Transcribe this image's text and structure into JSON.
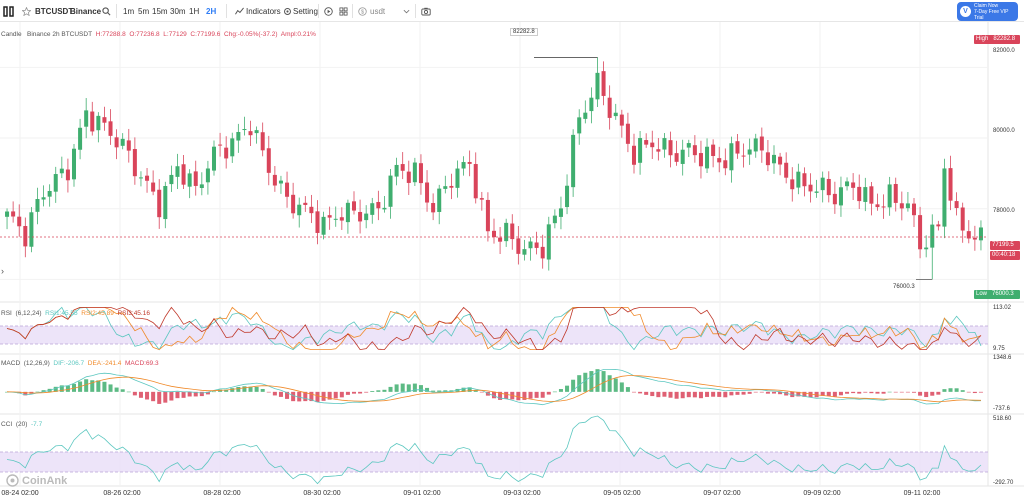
{
  "toolbar": {
    "symbol": "BTCUSDT",
    "exchange": "Binance",
    "intervals": [
      "1m",
      "5m",
      "15m",
      "30m",
      "1H",
      "2H"
    ],
    "active_interval": "2H",
    "indicators_label": "Indicators",
    "setting_label": "Setting",
    "pair_select_value": "usdt",
    "promo_line1": "Claim Now",
    "promo_line2": "7-Day Free VIP Trial"
  },
  "main_legend": {
    "type": "Candle",
    "info": "Binance 2h BTCUSDT",
    "h": "H:77288.8",
    "o": "O:77236.8",
    "l": "L:77129",
    "c": "C:77199.6",
    "chg": "Chg:-0.05%(-37.2)",
    "ampl": "Ampl:0.21%"
  },
  "price_axis": {
    "ticks": [
      "82000.0",
      "80000.0",
      "78000.0"
    ],
    "high_tag": "High",
    "high_value": "82282.8",
    "low_tag": "Low",
    "low_value": "76000.3",
    "current_price": "77199.5",
    "countdown": "00:40:18"
  },
  "annotations": {
    "peak": "82282.8",
    "trough": "76000.3"
  },
  "rsi": {
    "label": "RSI",
    "params": "(6,12,24)",
    "rsi1": "RSI1:45.55",
    "rsi2": "RSI2:45.89",
    "rsi3": "RSI3:45.16",
    "axis_top": "113.02",
    "axis_bottom": "9.75"
  },
  "macd": {
    "label": "MACD",
    "params": "(12,26,9)",
    "dif": "DIF:-206.7",
    "dea": "DEA:-241.4",
    "macd": "MACD:69.3",
    "axis_top": "1348.6",
    "axis_bottom": "-737.6"
  },
  "cci": {
    "label": "CCI",
    "params": "(20)",
    "value": "-7.7",
    "axis_top": "518.60",
    "axis_bottom": "-292.70"
  },
  "time_axis": [
    "08-24 02:00",
    "08-26 02:00",
    "08-28 02:00",
    "08-30 02:00",
    "09-01 02:00",
    "09-03 02:00",
    "09-05 02:00",
    "09-07 02:00",
    "09-09 02:00",
    "09-11 02:00"
  ],
  "watermark": "CoinAnk",
  "colors": {
    "up": "#3fae6f",
    "down": "#d9445a",
    "accent": "#2f7df6",
    "rsi_band": "#e9ddf7"
  },
  "chart_data": {
    "type": "candlestick",
    "price_range": [
      75500,
      83200
    ],
    "anchors": [
      [
        0,
        77800
      ],
      [
        3,
        77100
      ],
      [
        6,
        78400
      ],
      [
        10,
        79300
      ],
      [
        13,
        80800
      ],
      [
        16,
        80200
      ],
      [
        19,
        79600
      ],
      [
        22,
        78900
      ],
      [
        25,
        78300
      ],
      [
        28,
        79300
      ],
      [
        31,
        78400
      ],
      [
        34,
        79400
      ],
      [
        37,
        79900
      ],
      [
        40,
        80600
      ],
      [
        43,
        79200
      ],
      [
        46,
        78100
      ],
      [
        49,
        77800
      ],
      [
        52,
        77600
      ],
      [
        55,
        78100
      ],
      [
        58,
        77900
      ],
      [
        61,
        77800
      ],
      [
        64,
        79000
      ],
      [
        67,
        79100
      ],
      [
        70,
        78200
      ],
      [
        73,
        78900
      ],
      [
        76,
        79100
      ],
      [
        79,
        77200
      ],
      [
        82,
        77400
      ],
      [
        85,
        77000
      ],
      [
        88,
        76900
      ],
      [
        91,
        77900
      ],
      [
        94,
        80500
      ],
      [
        97,
        81700
      ],
      [
        100,
        80700
      ],
      [
        103,
        79500
      ],
      [
        106,
        79700
      ],
      [
        109,
        79500
      ],
      [
        112,
        79800
      ],
      [
        115,
        79600
      ],
      [
        118,
        79300
      ],
      [
        121,
        79500
      ],
      [
        124,
        79700
      ],
      [
        127,
        79300
      ],
      [
        130,
        78800
      ],
      [
        133,
        78500
      ],
      [
        136,
        78200
      ],
      [
        139,
        78700
      ],
      [
        142,
        78300
      ],
      [
        145,
        78400
      ],
      [
        148,
        78000
      ],
      [
        150,
        76800
      ],
      [
        153,
        77400
      ],
      [
        154,
        79300
      ],
      [
        156,
        77800
      ],
      [
        159,
        77300
      ],
      [
        160,
        77200
      ]
    ]
  }
}
